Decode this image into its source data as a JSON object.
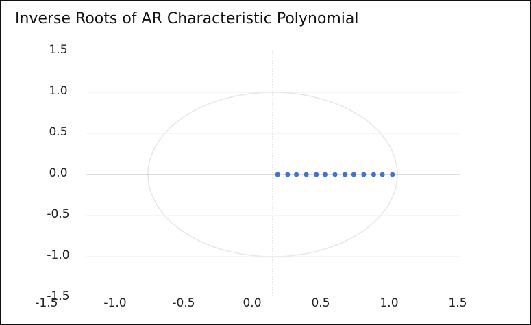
{
  "chart_data": {
    "type": "scatter",
    "title": "Inverse Roots of AR Characteristic Polynomial",
    "x": [
      0.04,
      0.12,
      0.19,
      0.27,
      0.35,
      0.42,
      0.5,
      0.58,
      0.65,
      0.73,
      0.81,
      0.88,
      0.96
    ],
    "values": [
      0,
      0,
      0,
      0,
      0,
      0,
      0,
      0,
      0,
      0,
      0,
      0,
      0
    ],
    "color": "#4472c4",
    "xlim": [
      -1.5,
      1.5
    ],
    "xticks": [
      -1.5,
      {
        "value": -1,
        "label": "-1.0"
      },
      -0.5,
      {
        "value": 0,
        "label": "0.0"
      },
      0.5,
      {
        "value": 1,
        "label": "1.0"
      },
      1.5
    ],
    "ylim": [
      -1.5,
      1.5
    ],
    "yticks": [
      1.5,
      {
        "value": 1,
        "label": "1.0"
      },
      0.5,
      {
        "value": 0,
        "label": "0.0"
      },
      -0.5,
      {
        "value": -1,
        "label": "-1.0"
      },
      -1.5
    ],
    "grid": true
  }
}
